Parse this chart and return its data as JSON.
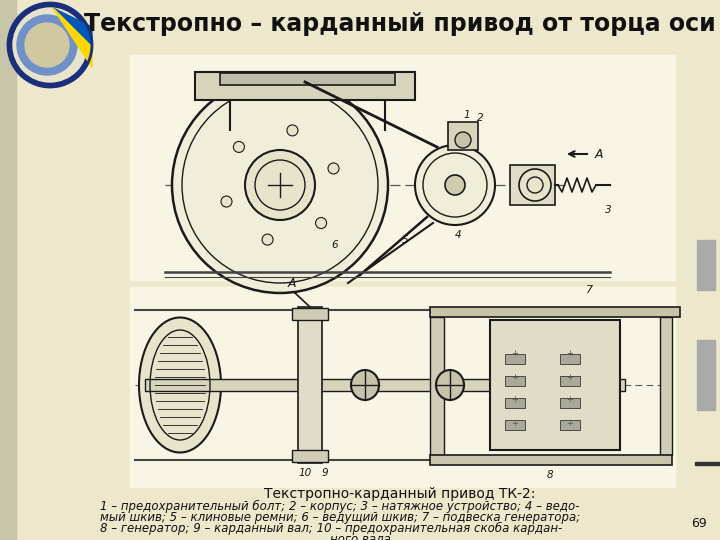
{
  "title": "Текстропно – карданный привод от торца оси",
  "title_fontsize": 17,
  "background_color": "#ede8cc",
  "left_strip_color": "#c8c4a8",
  "caption_title": "Текстропно-карданный привод ТК-2:",
  "caption_body_line1": "1 – предохранительный болт; 2 – корпус; 3 – натяжное устройство; 4 – ведо-",
  "caption_body_line2": "мый шкив; 5 – клиновые ремни; 6 – ведущий шкив; 7 – подвеска генератора;",
  "caption_body_line3": "8 – генератор; 9 – карданный вал; 10 – предохранительная скоба кардан-",
  "caption_body_line4": "ного вала",
  "page_number": "69",
  "diagram_bg": "#f0edd8",
  "text_color": "#111111",
  "caption_fontsize": 8.5,
  "caption_title_fontsize": 10,
  "right_bar_color": "#aaaaaa"
}
